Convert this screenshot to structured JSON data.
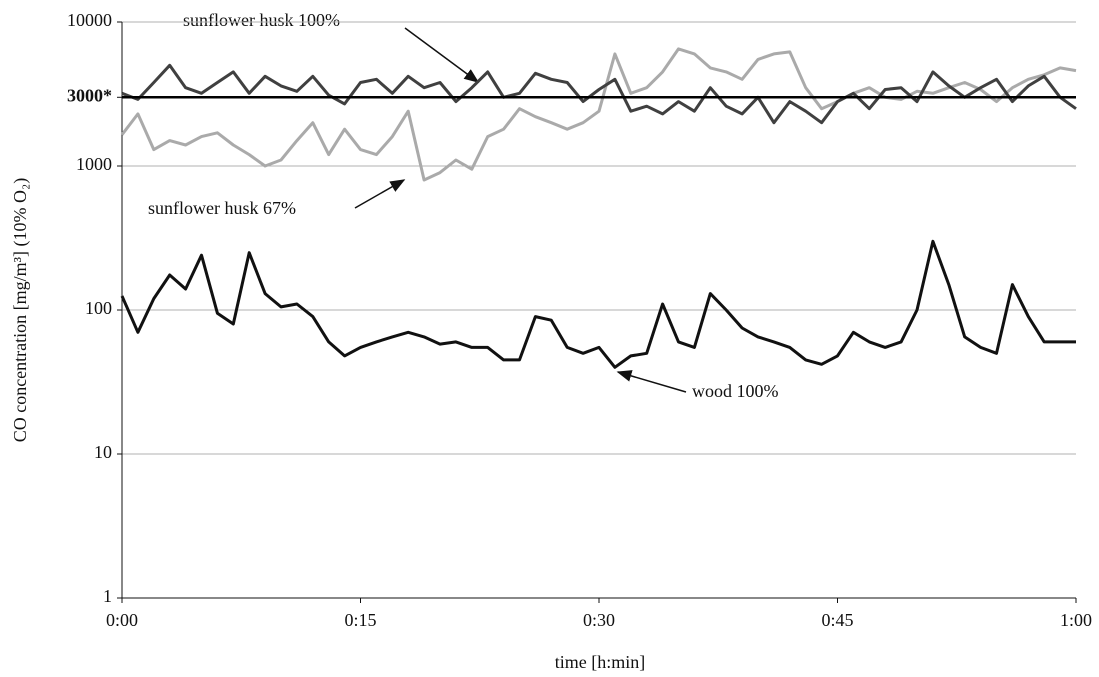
{
  "chart_data": {
    "type": "line",
    "xlabel": "time [h:min]",
    "ylabel": "CO concentration [mg/m³] (10% O₂)",
    "log_y": true,
    "grid": true,
    "xlim": [
      0,
      60
    ],
    "xticks": [
      {
        "value": 0,
        "label": "0:00"
      },
      {
        "value": 15,
        "label": "0:15"
      },
      {
        "value": 30,
        "label": "0:30"
      },
      {
        "value": 45,
        "label": "0:45"
      },
      {
        "value": 60,
        "label": "1:00"
      }
    ],
    "ylim": [
      1,
      10000
    ],
    "yticks": [
      1,
      10,
      100,
      1000,
      {
        "value": 3000,
        "label": "3000*"
      },
      10000
    ],
    "x": [
      0,
      1,
      2,
      3,
      4,
      5,
      6,
      7,
      8,
      9,
      10,
      11,
      12,
      13,
      14,
      15,
      16,
      17,
      18,
      19,
      20,
      21,
      22,
      23,
      24,
      25,
      26,
      27,
      28,
      29,
      30,
      31,
      32,
      33,
      34,
      35,
      36,
      37,
      38,
      39,
      40,
      41,
      42,
      43,
      44,
      45,
      46,
      47,
      48,
      49,
      50,
      51,
      52,
      53,
      54,
      55,
      56,
      57,
      58,
      59,
      60
    ],
    "series": [
      {
        "name": "sunflower husk 67%",
        "color": "#aaaaaa",
        "values": [
          1650,
          2300,
          1300,
          1500,
          1400,
          1600,
          1700,
          1400,
          1200,
          1000,
          1100,
          1500,
          2000,
          1200,
          1800,
          1300,
          1200,
          1600,
          2400,
          800,
          900,
          1100,
          950,
          1600,
          1800,
          2500,
          2200,
          2000,
          1800,
          2000,
          2400,
          6000,
          3200,
          3500,
          4500,
          6500,
          6000,
          4800,
          4500,
          4000,
          5500,
          6000,
          6200,
          3500,
          2500,
          2800,
          3200,
          3500,
          3000,
          2900,
          3300,
          3200,
          3500,
          3800,
          3400,
          2800,
          3500,
          4000,
          4300,
          4800,
          4600
        ]
      },
      {
        "name": "sunflower husk 100%",
        "color": "#404040",
        "values": [
          3200,
          2900,
          3800,
          5000,
          3500,
          3200,
          3800,
          4500,
          3200,
          4200,
          3600,
          3300,
          4200,
          3100,
          2700,
          3800,
          4000,
          3200,
          4200,
          3500,
          3800,
          2800,
          3500,
          4500,
          3000,
          3200,
          4400,
          4000,
          3800,
          2800,
          3400,
          4000,
          2400,
          2600,
          2300,
          2800,
          2400,
          3500,
          2600,
          2300,
          3000,
          2000,
          2800,
          2400,
          2000,
          2800,
          3200,
          2500,
          3400,
          3500,
          2800,
          4500,
          3600,
          3000,
          3500,
          4000,
          2800,
          3600,
          4200,
          3000,
          2500
        ]
      },
      {
        "name": "wood 100%",
        "color": "#111111",
        "values": [
          125,
          70,
          120,
          175,
          140,
          240,
          95,
          80,
          250,
          130,
          105,
          110,
          90,
          60,
          48,
          55,
          60,
          65,
          70,
          65,
          58,
          60,
          55,
          55,
          45,
          45,
          90,
          85,
          55,
          50,
          55,
          40,
          48,
          50,
          110,
          60,
          55,
          130,
          100,
          75,
          65,
          60,
          55,
          45,
          42,
          48,
          70,
          60,
          55,
          60,
          100,
          300,
          150,
          65,
          55,
          50,
          150,
          90,
          60,
          60,
          60
        ]
      }
    ]
  }
}
